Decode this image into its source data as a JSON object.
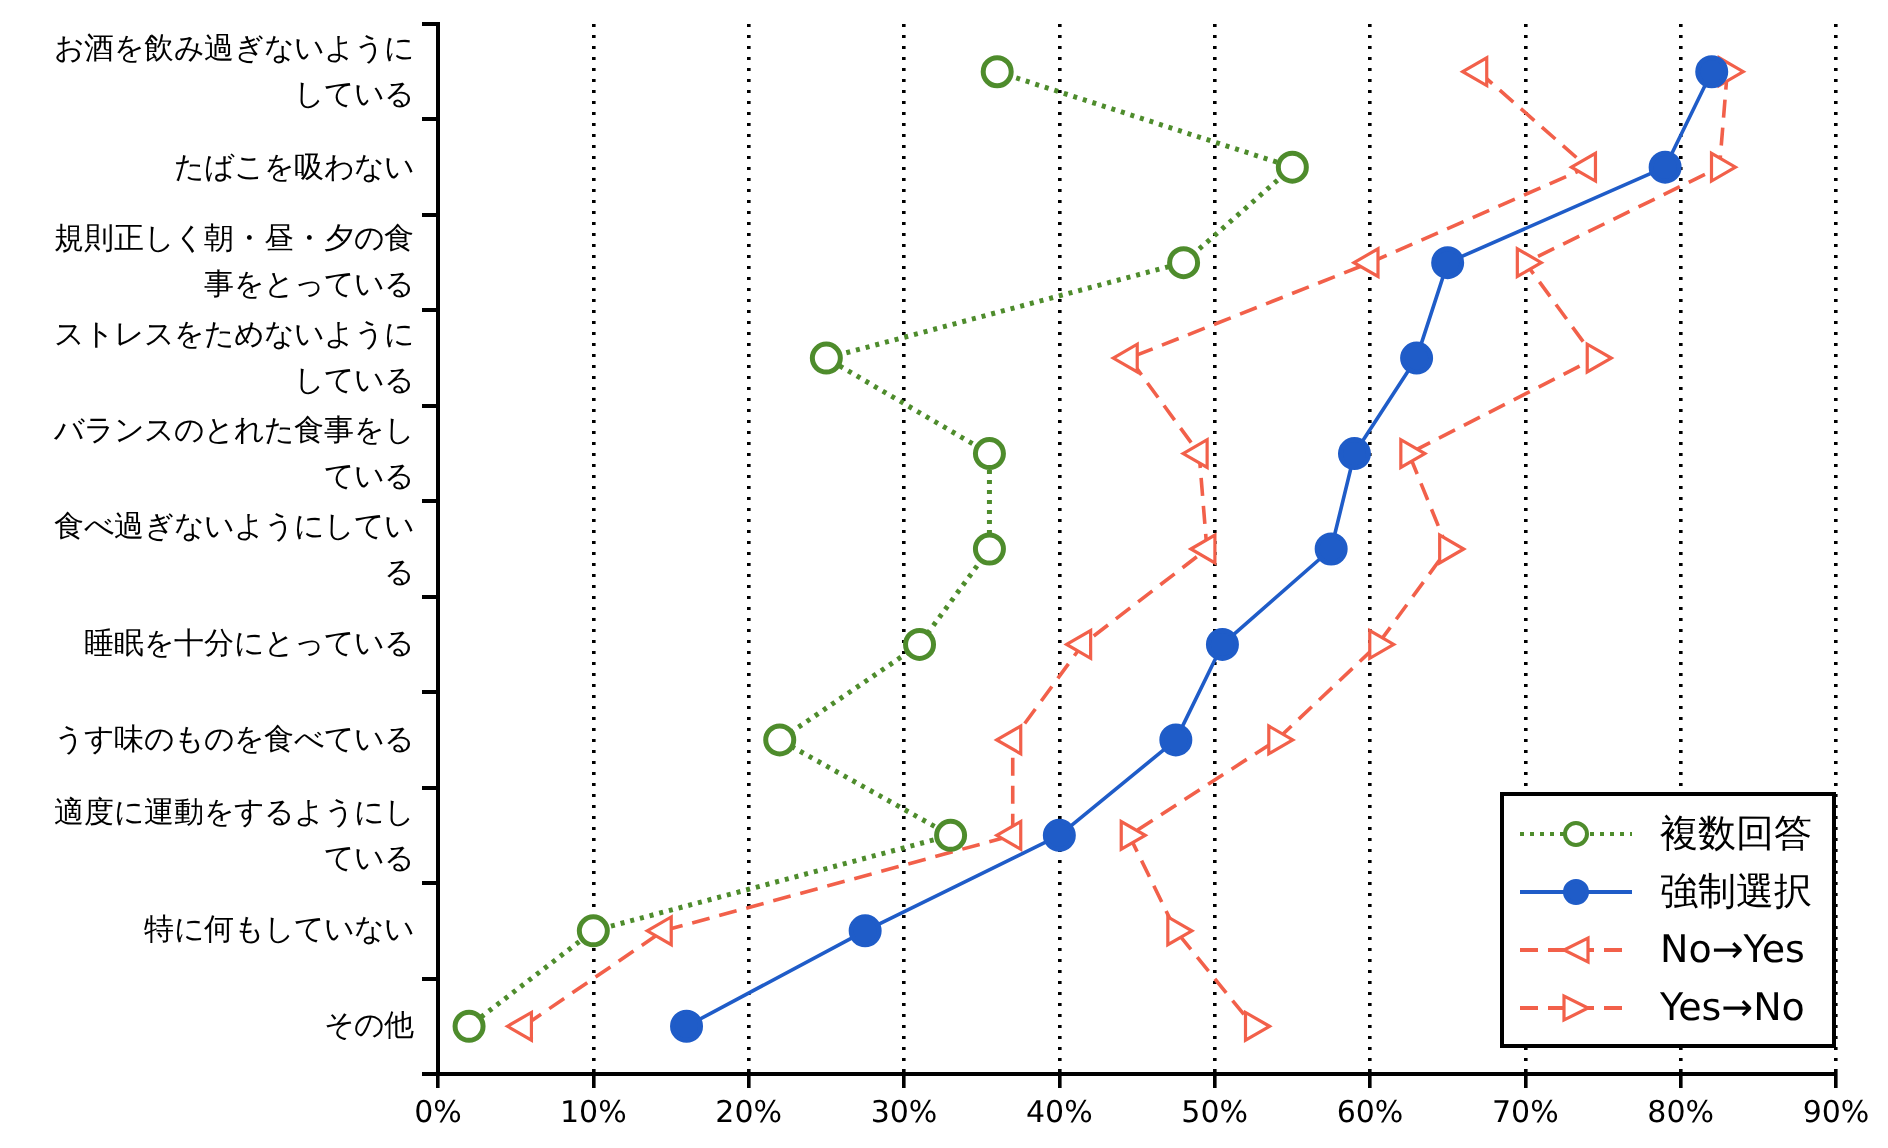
{
  "chart_data": {
    "type": "line",
    "orientation": "horizontal",
    "categories": [
      "お酒を飲み過ぎないようにしている",
      "たばこを吸わない",
      "規則正しく朝・昼・夕の食事をとっている",
      "ストレスをためないようにしている",
      "バランスのとれた食事をしている",
      "食べ過ぎないようにしている",
      "睡眠を十分にとっている",
      "うす味のものを食べている",
      "適度に運動をするようにしている",
      "特に何もしていない",
      "その他"
    ],
    "series": [
      {
        "name": "複数回答",
        "color": "#4e8c2c",
        "marker": "circle",
        "line_style": "dotted",
        "values": [
          36,
          55,
          48,
          25,
          35.5,
          35.5,
          31,
          22,
          33,
          10,
          2
        ]
      },
      {
        "name": "強制選択",
        "color": "#1f5cc8",
        "marker": "circle",
        "line_style": "solid",
        "values": [
          82,
          79,
          65,
          63,
          59,
          57.5,
          50.5,
          47.5,
          40,
          27.5,
          16
        ]
      },
      {
        "name": "No→Yes",
        "color": "#f2604a",
        "marker": "triangle",
        "line_style": "dashed",
        "values": [
          67,
          74,
          60,
          44.5,
          49,
          49.5,
          41.5,
          37,
          37,
          14.5,
          5.5
        ]
      },
      {
        "name": "Yes→No",
        "color": "#f2604a",
        "marker": "triangle",
        "line_style": "dashed",
        "values": [
          83,
          82.5,
          70,
          74.5,
          62.5,
          65,
          60.5,
          54,
          44.5,
          47.5,
          52.5
        ]
      }
    ],
    "xlim": [
      0,
      90
    ],
    "xticks": [
      {
        "value": 0,
        "label": "0%"
      },
      {
        "value": 10,
        "label": "10%"
      },
      {
        "value": 20,
        "label": "20%"
      },
      {
        "value": 30,
        "label": "30%"
      },
      {
        "value": 40,
        "label": "40%"
      },
      {
        "value": 50,
        "label": "50%"
      },
      {
        "value": 60,
        "label": "60%"
      },
      {
        "value": 70,
        "label": "70%"
      },
      {
        "value": 80,
        "label": "80%"
      },
      {
        "value": 90,
        "label": "90%"
      }
    ],
    "grid": "x",
    "legend": "bottom right"
  }
}
